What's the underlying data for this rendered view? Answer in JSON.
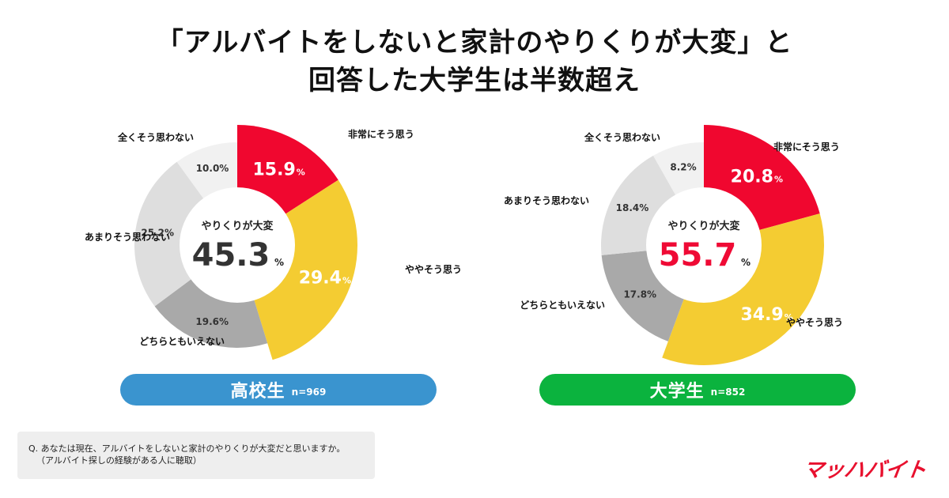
{
  "title": {
    "line1": "「アルバイトをしないと家計のやりくりが大変」と",
    "line2": "回答した大学生は半数超え"
  },
  "chart_data": [
    {
      "type": "pie",
      "id": "hs",
      "group": "高校生",
      "n_label": "n=969",
      "center_label": "やりくりが大変",
      "center_value": "45.3",
      "center_unit": "%",
      "center_value_color": "#333333",
      "categories": [
        "非常にそう思う",
        "ややそう思う",
        "どちらともいえない",
        "あまりそう思わない",
        "全くそう思わない"
      ],
      "values": [
        15.9,
        29.4,
        19.6,
        25.2,
        10.0
      ],
      "value_labels": [
        "15.9",
        "29.4",
        "19.6%",
        "25.2%",
        "10.0%"
      ],
      "colors": [
        "#f0072f",
        "#f4cc32",
        "#a9a9a9",
        "#dedede",
        "#f1f1f1"
      ]
    },
    {
      "type": "pie",
      "id": "uni",
      "group": "大学生",
      "n_label": "n=852",
      "center_label": "やりくりが大変",
      "center_value": "55.7",
      "center_unit": "%",
      "center_value_color": "#ef0a35",
      "categories": [
        "非常にそう思う",
        "ややそう思う",
        "どちらともいえない",
        "あまりそう思わない",
        "全くそう思わない"
      ],
      "values": [
        20.8,
        34.9,
        17.8,
        18.4,
        8.2
      ],
      "value_labels": [
        "20.8",
        "34.9",
        "17.8%",
        "18.4%",
        "8.2%"
      ],
      "colors": [
        "#f0072f",
        "#f4cc32",
        "#a9a9a9",
        "#dedede",
        "#f1f1f1"
      ]
    }
  ],
  "question": {
    "line1": "Q. あなたは現在、アルバイトをしないと家計のやりくりが大変だと思いますか。",
    "line2": "（アルバイト探しの経験がある人に聴取）"
  },
  "logo": {
    "text": "マッハバイト",
    "color": "#e8102e"
  }
}
